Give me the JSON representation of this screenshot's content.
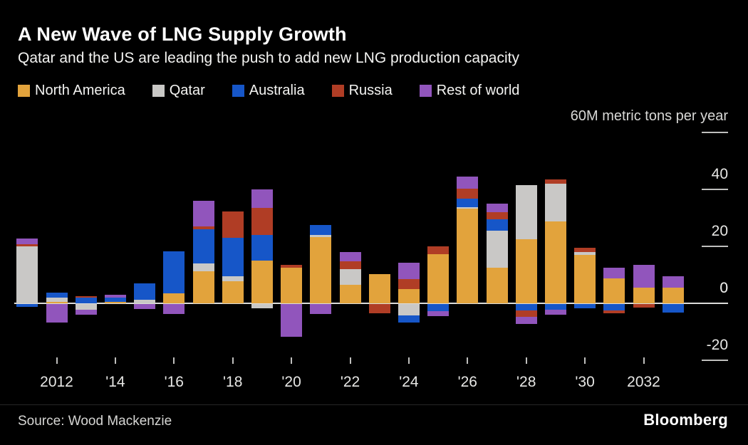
{
  "header": {
    "title": "A New Wave of LNG Supply Growth",
    "subtitle": "Qatar and the US are leading the push to add new LNG production capacity"
  },
  "footer": {
    "source": "Source: Wood Mackenzie",
    "brand": "Bloomberg"
  },
  "chart_data": {
    "type": "bar",
    "variant": "stacked-bar-with-negatives",
    "title": "A New Wave of LNG Supply Growth",
    "subtitle": "Qatar and the US are leading the push to add new LNG production capacity",
    "unit_label": "60M metric tons per year",
    "ylabel": "metric tons per year (millions)",
    "ylim": [
      -25,
      60
    ],
    "grid": "right-edge ticks only, zero baseline across plot",
    "legend_position": "top-left",
    "series": [
      {
        "key": "north_america",
        "label": "North America",
        "color": "#E2A33C"
      },
      {
        "key": "qatar",
        "label": "Qatar",
        "color": "#C9C8C6"
      },
      {
        "key": "australia",
        "label": "Australia",
        "color": "#1656C8"
      },
      {
        "key": "russia",
        "label": "Russia",
        "color": "#B03D25"
      },
      {
        "key": "rest_of_world",
        "label": "Rest of world",
        "color": "#9155BC"
      }
    ],
    "y_ticks": [
      {
        "value": 60,
        "label": ""
      },
      {
        "value": 40,
        "label": "40"
      },
      {
        "value": 20,
        "label": "20"
      },
      {
        "value": 0,
        "label": "0"
      },
      {
        "value": -20,
        "label": "-20"
      }
    ],
    "x_ticks": [
      {
        "year": 2012,
        "label": "2012"
      },
      {
        "year": 2014,
        "label": "'14"
      },
      {
        "year": 2016,
        "label": "'16"
      },
      {
        "year": 2018,
        "label": "'18"
      },
      {
        "year": 2020,
        "label": "'20"
      },
      {
        "year": 2022,
        "label": "'22"
      },
      {
        "year": 2024,
        "label": "'24"
      },
      {
        "year": 2026,
        "label": "'26"
      },
      {
        "year": 2028,
        "label": "'28"
      },
      {
        "year": 2030,
        "label": "'30"
      },
      {
        "year": 2032,
        "label": "2032"
      }
    ],
    "years": [
      {
        "year": 2011,
        "pos": [
          [
            "qatar",
            20
          ],
          [
            "russia",
            0.75
          ],
          [
            "rest_of_world",
            2
          ]
        ],
        "neg": [
          [
            "australia",
            1
          ]
        ]
      },
      {
        "year": 2012,
        "pos": [
          [
            "north_america",
            0.6
          ],
          [
            "qatar",
            1.3
          ],
          [
            "australia",
            1.9
          ]
        ],
        "neg": [
          [
            "rest_of_world",
            6.5
          ]
        ]
      },
      {
        "year": 2013,
        "pos": [
          [
            "australia",
            2
          ],
          [
            "russia",
            0.6
          ]
        ],
        "neg": [
          [
            "qatar",
            2
          ],
          [
            "rest_of_world",
            1.7
          ]
        ]
      },
      {
        "year": 2014,
        "pos": [
          [
            "north_america",
            0.5
          ],
          [
            "australia",
            1.5
          ],
          [
            "rest_of_world",
            0.9
          ]
        ],
        "neg": []
      },
      {
        "year": 2015,
        "pos": [
          [
            "qatar",
            1.2
          ],
          [
            "australia",
            5.8
          ]
        ],
        "neg": [
          [
            "rest_of_world",
            1.8
          ]
        ]
      },
      {
        "year": 2016,
        "pos": [
          [
            "north_america",
            3.4
          ],
          [
            "australia",
            14.9
          ]
        ],
        "neg": [
          [
            "rest_of_world",
            3.5
          ]
        ]
      },
      {
        "year": 2017,
        "pos": [
          [
            "north_america",
            11.2
          ],
          [
            "qatar",
            2.9
          ],
          [
            "australia",
            12
          ],
          [
            "russia",
            1
          ],
          [
            "rest_of_world",
            9
          ]
        ],
        "neg": []
      },
      {
        "year": 2018,
        "pos": [
          [
            "north_america",
            7.7
          ],
          [
            "qatar",
            1.9
          ],
          [
            "australia",
            13.5
          ],
          [
            "russia",
            9.2
          ]
        ],
        "neg": []
      },
      {
        "year": 2019,
        "pos": [
          [
            "north_america",
            15
          ],
          [
            "australia",
            9
          ],
          [
            "russia",
            9.5
          ],
          [
            "rest_of_world",
            6.5
          ]
        ],
        "neg": [
          [
            "qatar",
            1.5
          ]
        ]
      },
      {
        "year": 2020,
        "pos": [
          [
            "north_america",
            12.6
          ],
          [
            "russia",
            0.8
          ]
        ],
        "neg": [
          [
            "rest_of_world",
            11.5
          ]
        ]
      },
      {
        "year": 2021,
        "pos": [
          [
            "north_america",
            23.25
          ],
          [
            "qatar",
            0.75
          ],
          [
            "australia",
            3.5
          ]
        ],
        "neg": [
          [
            "rest_of_world",
            3.5
          ]
        ]
      },
      {
        "year": 2022,
        "pos": [
          [
            "north_america",
            6.6
          ],
          [
            "qatar",
            5.5
          ],
          [
            "russia",
            2.75
          ],
          [
            "rest_of_world",
            3.25
          ]
        ],
        "neg": []
      },
      {
        "year": 2023,
        "pos": [
          [
            "north_america",
            10.3
          ]
        ],
        "neg": [
          [
            "russia",
            3.2
          ]
        ]
      },
      {
        "year": 2024,
        "pos": [
          [
            "north_america",
            5.1
          ],
          [
            "russia",
            3.3
          ],
          [
            "rest_of_world",
            5.8
          ]
        ],
        "neg": [
          [
            "qatar",
            4
          ],
          [
            "australia",
            2.4
          ]
        ]
      },
      {
        "year": 2025,
        "pos": [
          [
            "north_america",
            17.3
          ],
          [
            "russia",
            2.8
          ]
        ],
        "neg": [
          [
            "australia",
            2.4
          ],
          [
            "rest_of_world",
            1.8
          ]
        ]
      },
      {
        "year": 2026,
        "pos": [
          [
            "north_america",
            33.2
          ],
          [
            "qatar",
            0.6
          ],
          [
            "australia",
            3
          ],
          [
            "russia",
            3.4
          ],
          [
            "rest_of_world",
            4.2
          ]
        ],
        "neg": []
      },
      {
        "year": 2027,
        "pos": [
          [
            "north_america",
            12.6
          ],
          [
            "qatar",
            13
          ],
          [
            "australia",
            4
          ],
          [
            "russia",
            2.5
          ],
          [
            "rest_of_world",
            2.8
          ]
        ],
        "neg": []
      },
      {
        "year": 2028,
        "pos": [
          [
            "north_america",
            22.6
          ],
          [
            "qatar",
            18.8
          ]
        ],
        "neg": [
          [
            "australia",
            2.3
          ],
          [
            "russia",
            2.3
          ],
          [
            "rest_of_world",
            2.4
          ]
        ]
      },
      {
        "year": 2029,
        "pos": [
          [
            "north_america",
            28.8
          ],
          [
            "qatar",
            13.3
          ],
          [
            "russia",
            1.3
          ]
        ],
        "neg": [
          [
            "australia",
            2.1
          ],
          [
            "rest_of_world",
            1.7
          ]
        ]
      },
      {
        "year": 2030,
        "pos": [
          [
            "north_america",
            17.1
          ],
          [
            "qatar",
            1
          ],
          [
            "russia",
            1.5
          ]
        ],
        "neg": [
          [
            "australia",
            1.5
          ]
        ]
      },
      {
        "year": 2031,
        "pos": [
          [
            "north_america",
            8.8
          ],
          [
            "rest_of_world",
            3.8
          ]
        ],
        "neg": [
          [
            "australia",
            2.3
          ],
          [
            "russia",
            1
          ]
        ]
      },
      {
        "year": 2032,
        "pos": [
          [
            "north_america",
            5.6
          ],
          [
            "rest_of_world",
            8
          ]
        ],
        "neg": [
          [
            "russia",
            1.3
          ]
        ]
      },
      {
        "year": 2033,
        "pos": [
          [
            "north_america",
            5.6
          ],
          [
            "rest_of_world",
            3.8
          ]
        ],
        "neg": [
          [
            "australia",
            3.1
          ]
        ]
      }
    ]
  }
}
